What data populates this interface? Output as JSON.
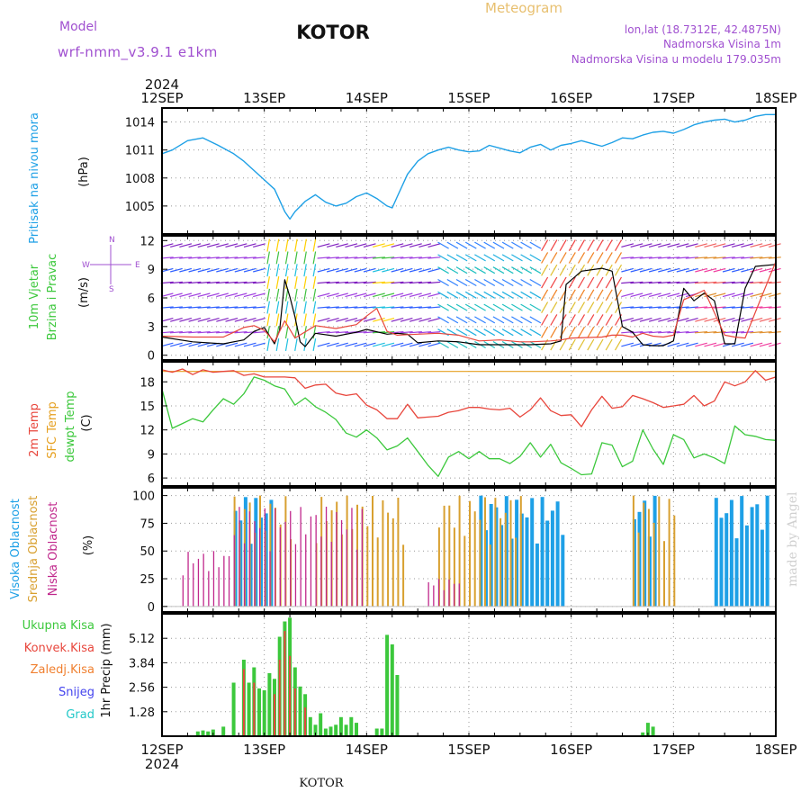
{
  "header": {
    "model_label": "Model",
    "model_name": "wrf-nmm_v3.9.1 e1km",
    "station_title": "KOTOR",
    "meteogram_label": "Meteogram",
    "lonlat": "lon,lat (18.7312E, 42.4875N)",
    "elevation": "Nadmorska Visina 1m",
    "model_elevation": "Nadmorska Visina u modelu 179.035m",
    "year_top": "2024",
    "year_bottom": "2024",
    "footer_station": "KOTOR",
    "watermark": "made by Angel"
  },
  "colors": {
    "pressure": "#1ea0e6",
    "temp2m": "#e8463c",
    "sfc_temp": "#e6a020",
    "dewpoint": "#3cc83c",
    "high_cloud": "#1ea0e6",
    "mid_cloud": "#d8a030",
    "low_cloud": "#c0288c",
    "total_precip": "#3cc83c",
    "conv_precip": "#e8463c",
    "frozen_precip": "#f08030",
    "snow": "#4444ee",
    "hail": "#22c8c8",
    "wind_speed": "#000000",
    "wind_gust": "#e8463c",
    "title_purple": "#a050d0",
    "meteogram_orange": "#e8c070"
  },
  "panel_labels": {
    "pressure_title": "Pritisak na nivou mora",
    "pressure_unit": "(hPa)",
    "wind_title1": "10m Vjetar",
    "wind_title2": "Brzina i Pravac",
    "wind_unit": "(m/s)",
    "compass_n": "N",
    "compass_s": "S",
    "compass_w": "W",
    "compass_e": "E",
    "temp_2m": "2m Temp",
    "temp_sfc": "SFC Temp",
    "temp_dew": "dewpt Temp",
    "temp_unit": "(C)",
    "cloud_high": "Visoka Oblacnost",
    "cloud_mid": "Srednja Oblacnost",
    "cloud_low": "Niska Oblacnost",
    "cloud_unit": "(%)",
    "precip_legend": [
      "Ukupna Kisa",
      "Konvek.Kisa",
      "Zaledj.Kisa",
      "Snijeg",
      "Grad"
    ],
    "precip_unit": "1hr Precip (mm)"
  },
  "chart_data": [
    {
      "type": "line",
      "name": "pressure",
      "x_ticks": [
        "12SEP",
        "13SEP",
        "14SEP",
        "15SEP",
        "16SEP",
        "17SEP",
        "18SEP"
      ],
      "y_ticks": [
        "1005",
        "1008",
        "1011",
        "1014"
      ],
      "ylim": [
        1002,
        1015.5
      ],
      "grid": true,
      "series": [
        {
          "x": [
            0,
            0.1,
            0.25,
            0.4,
            0.55,
            0.7,
            0.8,
            0.9,
            1.0,
            1.1,
            1.2,
            1.25,
            1.3,
            1.4,
            1.5,
            1.6,
            1.7,
            1.8,
            1.9,
            2.0,
            2.1,
            2.2,
            2.25,
            2.3,
            2.4,
            2.5,
            2.6,
            2.7,
            2.8,
            2.9,
            3.0,
            3.1,
            3.2,
            3.3,
            3.4,
            3.5,
            3.6,
            3.7,
            3.8,
            3.9,
            4.0,
            4.1,
            4.2,
            4.3,
            4.4,
            4.5,
            4.6,
            4.7,
            4.8,
            4.9,
            5.0,
            5.1,
            5.2,
            5.3,
            5.4,
            5.5,
            5.6,
            5.7,
            5.8,
            5.9,
            6.0
          ],
          "values": [
            1010.6,
            1011.0,
            1012.0,
            1012.3,
            1011.5,
            1010.6,
            1009.8,
            1008.8,
            1007.8,
            1006.8,
            1004.4,
            1003.6,
            1004.4,
            1005.5,
            1006.2,
            1005.4,
            1005.0,
            1005.3,
            1006.0,
            1006.4,
            1005.8,
            1005.0,
            1004.8,
            1006.0,
            1008.4,
            1009.8,
            1010.6,
            1011.0,
            1011.3,
            1011.0,
            1010.8,
            1010.9,
            1011.5,
            1011.2,
            1010.9,
            1010.7,
            1011.3,
            1011.6,
            1011.0,
            1011.5,
            1011.7,
            1012.0,
            1011.7,
            1011.4,
            1011.8,
            1012.3,
            1012.2,
            1012.6,
            1012.9,
            1013.0,
            1012.8,
            1013.2,
            1013.7,
            1014.0,
            1014.2,
            1014.3,
            1014.0,
            1014.2,
            1014.6,
            1014.8,
            1014.8
          ]
        }
      ]
    },
    {
      "type": "line",
      "name": "wind",
      "y_ticks": [
        "0",
        "3",
        "6",
        "9",
        "12"
      ],
      "ylim": [
        -0.5,
        12.5
      ],
      "grid": true,
      "series": [
        {
          "name": "speed",
          "x": [
            0,
            0.3,
            0.6,
            0.8,
            0.9,
            1.0,
            1.1,
            1.15,
            1.2,
            1.25,
            1.3,
            1.35,
            1.4,
            1.5,
            1.7,
            1.9,
            2.0,
            2.2,
            2.3,
            2.4,
            2.5,
            2.7,
            2.9,
            3.1,
            3.3,
            3.5,
            3.6,
            3.8,
            3.9,
            3.95,
            4.1,
            4.3,
            4.4,
            4.5,
            4.6,
            4.7,
            4.8,
            4.9,
            5.0,
            5.1,
            5.2,
            5.3,
            5.4,
            5.5,
            5.6,
            5.7,
            5.8,
            6.0
          ],
          "values": [
            1.9,
            1.4,
            1.2,
            1.6,
            2.5,
            2.9,
            1.2,
            2.6,
            7.9,
            6.1,
            4.0,
            1.4,
            0.9,
            2.3,
            2.0,
            2.4,
            2.7,
            2.2,
            2.3,
            2.2,
            1.3,
            1.5,
            1.4,
            1.1,
            1.1,
            1.1,
            1.1,
            1.2,
            1.5,
            7.4,
            8.8,
            9.1,
            8.8,
            3.0,
            2.4,
            1.1,
            1.0,
            1.0,
            1.5,
            7.0,
            5.7,
            6.5,
            5.7,
            1.2,
            1.2,
            7.0,
            9.3,
            9.5
          ]
        },
        {
          "name": "gust",
          "x": [
            0,
            0.3,
            0.6,
            0.8,
            0.9,
            1.0,
            1.1,
            1.2,
            1.3,
            1.5,
            1.7,
            1.9,
            2.0,
            2.1,
            2.2,
            2.3,
            2.5,
            2.7,
            2.9,
            3.1,
            3.3,
            3.5,
            3.6,
            3.8,
            3.9,
            4.0,
            4.3,
            4.4,
            4.5,
            4.6,
            4.7,
            4.8,
            4.9,
            5.0,
            5.1,
            5.3,
            5.5,
            5.6,
            5.7,
            5.8,
            6.0
          ],
          "values": [
            2.0,
            1.9,
            1.9,
            2.9,
            3.1,
            2.6,
            1.4,
            3.6,
            1.8,
            3.1,
            2.8,
            3.2,
            4.1,
            4.9,
            2.5,
            2.1,
            2.2,
            2.3,
            2.1,
            1.5,
            1.6,
            1.4,
            1.4,
            1.5,
            1.6,
            1.8,
            1.9,
            2.1,
            2.1,
            1.9,
            2.3,
            2.0,
            1.9,
            2.1,
            5.8,
            6.8,
            2.1,
            1.9,
            1.8,
            4.5,
            9.8
          ]
        }
      ]
    },
    {
      "type": "line",
      "name": "temperature",
      "y_ticks": [
        "6",
        "9",
        "12",
        "15",
        "18"
      ],
      "ylim": [
        5,
        20.5
      ],
      "grid": true,
      "series": [
        {
          "name": "2m Temp",
          "x": [
            0,
            0.1,
            0.2,
            0.3,
            0.4,
            0.5,
            0.6,
            0.7,
            0.8,
            0.9,
            1.0,
            1.1,
            1.2,
            1.3,
            1.4,
            1.5,
            1.6,
            1.7,
            1.8,
            1.9,
            2.0,
            2.1,
            2.2,
            2.3,
            2.4,
            2.5,
            2.6,
            2.7,
            2.8,
            2.9,
            3.0,
            3.1,
            3.2,
            3.3,
            3.4,
            3.5,
            3.6,
            3.7,
            3.8,
            3.9,
            4.0,
            4.1,
            4.2,
            4.3,
            4.4,
            4.5,
            4.6,
            4.7,
            4.8,
            4.9,
            5.0,
            5.1,
            5.2,
            5.3,
            5.4,
            5.5,
            5.6,
            5.7,
            5.8,
            5.9,
            6.0
          ],
          "values": [
            19.5,
            19.2,
            19.6,
            18.9,
            19.5,
            19.2,
            19.3,
            19.4,
            18.8,
            19.0,
            18.6,
            18.6,
            18.6,
            18.5,
            17.2,
            17.6,
            17.7,
            16.6,
            16.3,
            16.5,
            15.1,
            14.5,
            13.4,
            13.4,
            15.2,
            13.5,
            13.6,
            13.7,
            14.2,
            14.4,
            14.8,
            14.8,
            14.6,
            14.5,
            14.7,
            13.6,
            14.5,
            16.0,
            14.4,
            13.8,
            13.9,
            12.4,
            14.5,
            16.2,
            14.7,
            14.9,
            16.3,
            15.9,
            15.4,
            14.8,
            15.0,
            15.2,
            16.3,
            15.0,
            15.6,
            18.0,
            17.5,
            18.0,
            19.4,
            18.2,
            18.6
          ]
        },
        {
          "name": "SFC Temp",
          "x": [
            0,
            6
          ],
          "values": [
            19.3,
            19.3
          ]
        },
        {
          "name": "dewpt Temp",
          "x": [
            0,
            0.1,
            0.2,
            0.3,
            0.4,
            0.5,
            0.6,
            0.7,
            0.8,
            0.9,
            1.0,
            1.1,
            1.2,
            1.3,
            1.4,
            1.5,
            1.6,
            1.7,
            1.8,
            1.9,
            2.0,
            2.1,
            2.2,
            2.3,
            2.4,
            2.5,
            2.6,
            2.7,
            2.8,
            2.9,
            3.0,
            3.1,
            3.2,
            3.3,
            3.4,
            3.5,
            3.6,
            3.7,
            3.8,
            3.9,
            4.0,
            4.1,
            4.2,
            4.3,
            4.4,
            4.5,
            4.6,
            4.7,
            4.8,
            4.9,
            5.0,
            5.1,
            5.2,
            5.3,
            5.4,
            5.5,
            5.6,
            5.7,
            5.8,
            5.9,
            6.0
          ],
          "values": [
            17.1,
            12.2,
            12.8,
            13.4,
            13.0,
            14.5,
            15.9,
            15.2,
            16.5,
            18.6,
            18.2,
            17.5,
            17.1,
            15.1,
            16.0,
            14.9,
            14.2,
            13.3,
            11.6,
            11.1,
            12.0,
            11.0,
            9.5,
            10.0,
            11.0,
            9.3,
            7.6,
            6.2,
            8.6,
            9.3,
            8.4,
            9.3,
            8.4,
            8.4,
            7.8,
            8.7,
            10.4,
            8.6,
            10.2,
            7.9,
            7.2,
            6.4,
            6.5,
            10.4,
            10.1,
            7.4,
            8.1,
            12.0,
            9.6,
            7.7,
            11.4,
            10.8,
            8.5,
            9.0,
            8.5,
            7.8,
            12.5,
            11.4,
            11.2,
            10.8,
            10.7
          ]
        }
      ]
    },
    {
      "type": "bar",
      "name": "cloud_cover",
      "y_ticks": [
        "0",
        "25",
        "50",
        "75",
        "100"
      ],
      "ylim": [
        -5,
        107
      ],
      "grid": true,
      "series": [
        {
          "name": "Visoka Oblacnost",
          "segments": [
            [
              0.7,
              1.1,
              100
            ],
            [
              3.1,
              3.9,
              100
            ],
            [
              5.4,
              5.9,
              100
            ],
            [
              4.6,
              4.8,
              100
            ]
          ]
        },
        {
          "name": "Srednja Oblacnost",
          "segments": [
            [
              0.7,
              1.3,
              100
            ],
            [
              1.5,
              2.35,
              100
            ],
            [
              2.7,
              3.5,
              100
            ],
            [
              4.6,
              5.0,
              100
            ]
          ]
        },
        {
          "name": "Niska Oblacnost",
          "segments": [
            [
              0.2,
              0.65,
              50
            ],
            [
              0.7,
              2.0,
              90
            ],
            [
              2.6,
              2.9,
              25
            ]
          ]
        }
      ]
    },
    {
      "type": "bar",
      "name": "precipitation",
      "y_ticks": [
        "1.28",
        "2.56",
        "3.84",
        "5.12"
      ],
      "ylim": [
        0,
        6.4
      ],
      "grid": true,
      "series": [
        {
          "name": "Ukupna Kisa",
          "x": [
            0.35,
            0.4,
            0.45,
            0.5,
            0.6,
            0.7,
            0.8,
            0.85,
            0.9,
            0.95,
            1.0,
            1.05,
            1.1,
            1.15,
            1.2,
            1.25,
            1.3,
            1.35,
            1.4,
            1.45,
            1.5,
            1.55,
            1.6,
            1.65,
            1.7,
            1.75,
            1.8,
            1.85,
            1.9,
            2.1,
            2.15,
            2.2,
            2.25,
            2.3,
            4.7,
            4.75,
            4.8
          ],
          "values": [
            0.25,
            0.3,
            0.25,
            0.35,
            0.5,
            2.8,
            4.0,
            2.8,
            3.6,
            2.5,
            2.4,
            3.3,
            3.0,
            5.2,
            6.0,
            6.2,
            3.6,
            2.6,
            2.2,
            1.0,
            0.6,
            1.2,
            0.4,
            0.5,
            0.6,
            1.0,
            0.6,
            1.0,
            0.7,
            0.4,
            0.4,
            5.3,
            4.8,
            3.2,
            0.2,
            0.7,
            0.5
          ]
        },
        {
          "name": "Konvek.Kisa",
          "x": [
            0.8,
            0.9,
            1.1,
            1.15,
            1.2,
            1.25,
            1.3,
            1.4
          ],
          "values": [
            3.5,
            2.8,
            2.2,
            4.0,
            5.5,
            4.2,
            2.5,
            1.5
          ]
        }
      ]
    }
  ]
}
